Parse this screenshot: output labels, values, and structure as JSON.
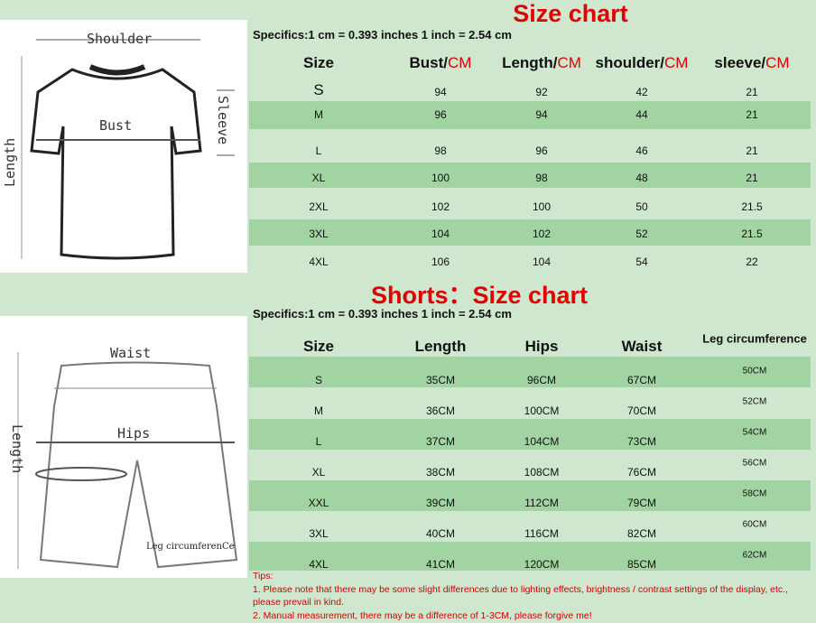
{
  "shirt": {
    "title": "Size chart",
    "specifics": "Specifics:1 cm = 0.393 inches   1 inch = 2.54 cm",
    "headers": [
      {
        "name": "Size",
        "unit": ""
      },
      {
        "name": "Bust/",
        "unit": "CM"
      },
      {
        "name": "Length/",
        "unit": "CM"
      },
      {
        "name": "shoulder/",
        "unit": "CM"
      },
      {
        "name": "sleeve/",
        "unit": "CM"
      }
    ],
    "rows": [
      [
        "S",
        "94",
        "92",
        "42",
        "21"
      ],
      [
        "M",
        "96",
        "94",
        "44",
        "21"
      ],
      [
        "L",
        "98",
        "96",
        "46",
        "21"
      ],
      [
        "XL",
        "100",
        "98",
        "48",
        "21"
      ],
      [
        "2XL",
        "102",
        "100",
        "50",
        "21.5"
      ],
      [
        "3XL",
        "104",
        "102",
        "52",
        "21.5"
      ],
      [
        "4XL",
        "106",
        "104",
        "54",
        "22"
      ]
    ],
    "diagram_labels": {
      "shoulder": "Shoulder",
      "bust": "Bust",
      "sleeve": "Sleeve",
      "length": "Length"
    }
  },
  "shorts": {
    "title": "Shorts：Size chart",
    "specifics": "Specifics:1 cm = 0.393 inches   1 inch = 2.54 cm",
    "headers": [
      "Size",
      "Length",
      "Hips",
      "Waist",
      "Leg circumference"
    ],
    "rows": [
      [
        "S",
        "35CM",
        "96CM",
        "67CM",
        "50CM"
      ],
      [
        "M",
        "36CM",
        "100CM",
        "70CM",
        "52CM"
      ],
      [
        "L",
        "37CM",
        "104CM",
        "73CM",
        "54CM"
      ],
      [
        "XL",
        "38CM",
        "108CM",
        "76CM",
        "56CM"
      ],
      [
        "XXL",
        "39CM",
        "112CM",
        "79CM",
        "58CM"
      ],
      [
        "3XL",
        "40CM",
        "116CM",
        "82CM",
        "60CM"
      ],
      [
        "4XL",
        "41CM",
        "120CM",
        "85CM",
        "62CM"
      ]
    ],
    "diagram_labels": {
      "waist": "Waist",
      "hips": "Hips",
      "length": "Length",
      "leg": "Leg circumferenCe"
    }
  },
  "tips": {
    "heading": "Tips:",
    "line1": "1. Please note that there may be some slight differences due to lighting effects, brightness / contrast settings of the display, etc., please prevail in kind.",
    "line2": "2. Manual measurement, there may be a difference of 1-3CM, please forgive me!"
  },
  "colors": {
    "background": "#cfe7cf",
    "stripe": "#a2d3a2",
    "accent": "#e00000"
  }
}
